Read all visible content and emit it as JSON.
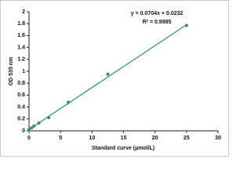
{
  "chart_data": {
    "type": "scatter",
    "xlabel": "Standard curve (µmol/L)",
    "ylabel": "OD 535 nm",
    "x": [
      0,
      0.39,
      0.78,
      1.56,
      3.125,
      6.25,
      12.5,
      25
    ],
    "series": [
      {
        "color": "#1e9a55",
        "values": [
          0.02,
          0.05,
          0.08,
          0.13,
          0.22,
          0.48,
          0.95,
          1.77
        ]
      }
    ],
    "trendline": {
      "equation": "y = 0.0704x + 0.0232",
      "r2": "R² = 0.9985",
      "slope": 0.0704,
      "intercept": 0.0232
    },
    "xlim": [
      0,
      30
    ],
    "xticks": [
      0,
      5,
      10,
      15,
      20,
      25,
      30
    ],
    "ylim": [
      0,
      2
    ],
    "yticks": [
      0,
      0.2,
      0.4,
      0.6,
      0.8,
      1,
      1.2,
      1.4,
      1.6,
      1.8,
      2
    ]
  }
}
